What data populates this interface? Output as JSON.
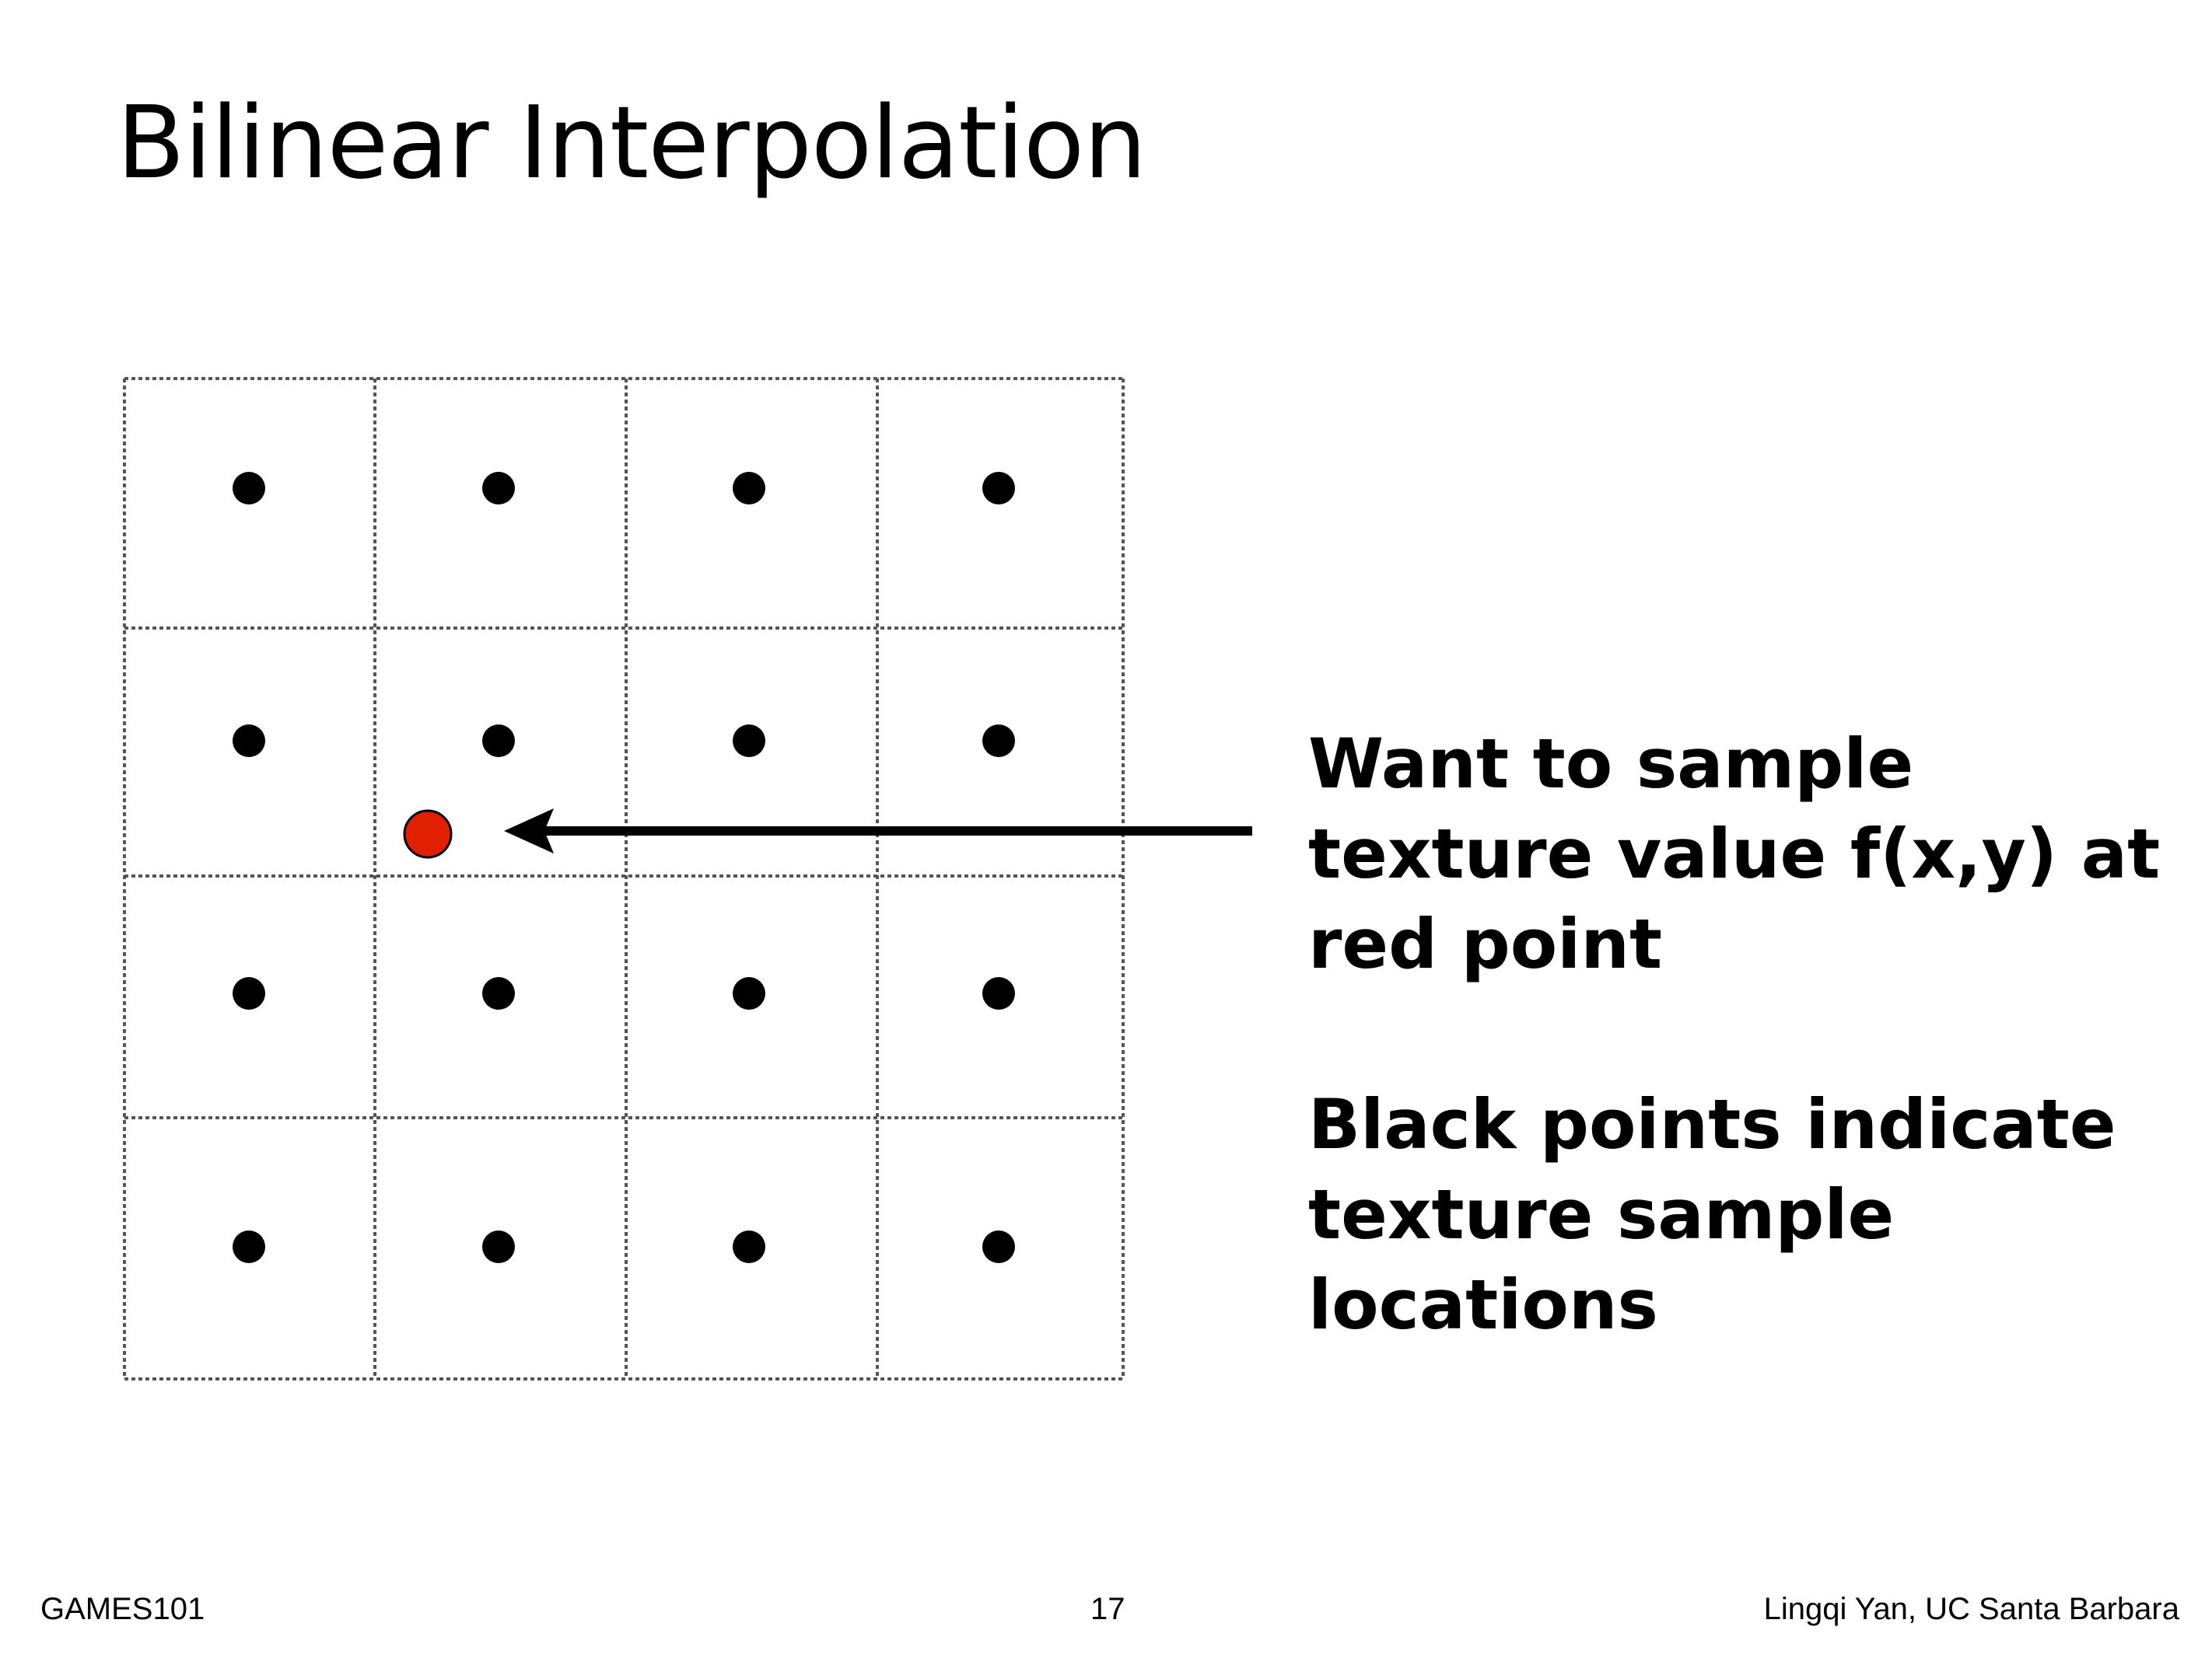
{
  "slide": {
    "title": "Bilinear Interpolation",
    "notes": [
      "Want to sample texture value f(x,y) at red point",
      "Black points indicate texture sample locations"
    ],
    "footer": {
      "left": "GAMES101",
      "page_number": "17",
      "right": "Lingqi Yan, UC Santa Barbara"
    }
  },
  "diagram": {
    "grid_rows": 4,
    "grid_cols": 4,
    "texel_sample_color": "#000000",
    "query_point_color": "#e02000",
    "arrow_color": "#000000"
  }
}
